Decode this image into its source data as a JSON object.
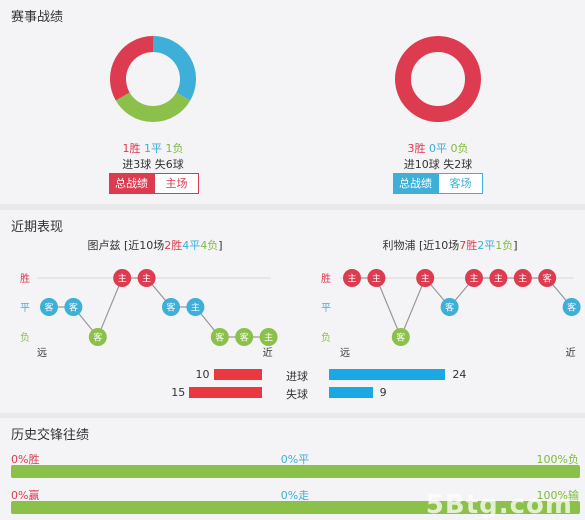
{
  "section1": {
    "title": "赛事战绩",
    "left": {
      "win": "1胜",
      "draw": "1平",
      "loss": "1负",
      "goals": "进3球 失6球",
      "tab_active": "总战绩",
      "tab_inactive": "主场",
      "donut": [
        {
          "label": "胜",
          "value": 1,
          "color": "#dc3b50"
        },
        {
          "label": "平",
          "value": 1,
          "color": "#3eafd9"
        },
        {
          "label": "负",
          "value": 1,
          "color": "#8bc04a"
        }
      ]
    },
    "right": {
      "win": "3胜",
      "draw": "0平",
      "loss": "0负",
      "goals": "进10球 失2球",
      "tab_active": "总战绩",
      "tab_inactive": "客场",
      "donut": [
        {
          "label": "胜",
          "value": 3,
          "color": "#dc3b50"
        },
        {
          "label": "平",
          "value": 0,
          "color": "#3eafd9"
        },
        {
          "label": "负",
          "value": 0,
          "color": "#8bc04a"
        }
      ]
    }
  },
  "section2": {
    "title": "近期表现",
    "y_labels": [
      "胜",
      "平",
      "负"
    ],
    "far": "远",
    "near": "近",
    "left": {
      "team": "图卢兹",
      "prefix": "[近10场",
      "w": "2胜",
      "d": "4平",
      "l": "4负",
      "suffix": "]",
      "results": [
        {
          "r": "D",
          "v": "客"
        },
        {
          "r": "D",
          "v": "客"
        },
        {
          "r": "L",
          "v": "客"
        },
        {
          "r": "W",
          "v": "主"
        },
        {
          "r": "W",
          "v": "主"
        },
        {
          "r": "D",
          "v": "客"
        },
        {
          "r": "D",
          "v": "主"
        },
        {
          "r": "L",
          "v": "客"
        },
        {
          "r": "L",
          "v": "客"
        },
        {
          "r": "L",
          "v": "主"
        }
      ]
    },
    "right": {
      "team": "利物浦",
      "prefix": "[近10场",
      "w": "7胜",
      "d": "2平",
      "l": "1负",
      "suffix": "]",
      "results": [
        {
          "r": "W",
          "v": "主"
        },
        {
          "r": "W",
          "v": "主"
        },
        {
          "r": "L",
          "v": "客"
        },
        {
          "r": "W",
          "v": "主"
        },
        {
          "r": "D",
          "v": "客"
        },
        {
          "r": "W",
          "v": "主"
        },
        {
          "r": "W",
          "v": "主"
        },
        {
          "r": "W",
          "v": "主"
        },
        {
          "r": "W",
          "v": "客"
        },
        {
          "r": "D",
          "v": "客"
        }
      ]
    },
    "goals": {
      "scored_label": "进球",
      "conceded_label": "失球",
      "left_scored": 10,
      "left_conceded": 15,
      "right_scored": 24,
      "right_conceded": 9,
      "left_color": "#e9383f",
      "right_color": "#1aa7e4"
    }
  },
  "section3": {
    "title": "历史交锋往绩",
    "row1": {
      "win": "0%胜",
      "draw": "0%平",
      "loss": "100%负",
      "fill": 1.0
    },
    "row2": {
      "win": "0%赢",
      "draw": "0%走",
      "loss": "100%输",
      "fill": 1.0
    }
  },
  "watermark": "5Btg.com",
  "colors": {
    "red": "#dc3b50",
    "blue": "#3eafd9",
    "green": "#8bc04a"
  }
}
